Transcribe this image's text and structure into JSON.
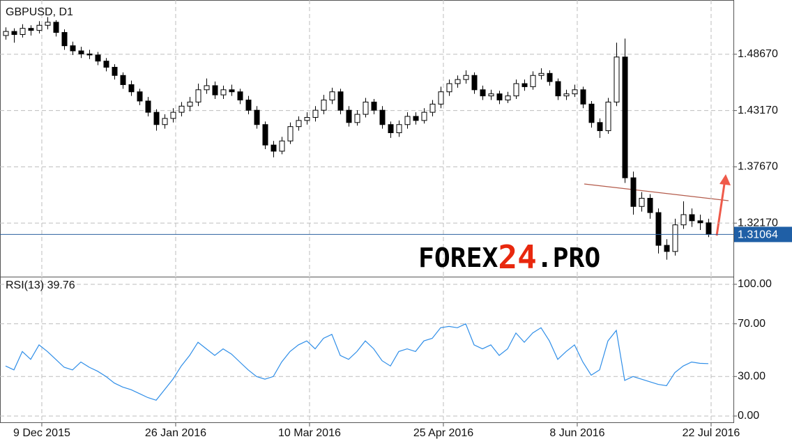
{
  "chart_data": [
    {
      "type": "candlestick",
      "title": "GBPUSD, D1",
      "candles": [
        [
          1.505,
          1.513,
          1.501,
          1.509
        ],
        [
          1.509,
          1.512,
          1.498,
          1.506
        ],
        [
          1.506,
          1.516,
          1.503,
          1.512
        ],
        [
          1.512,
          1.515,
          1.505,
          1.51
        ],
        [
          1.51,
          1.519,
          1.507,
          1.515
        ],
        [
          1.515,
          1.523,
          1.511,
          1.518
        ],
        [
          1.518,
          1.52,
          1.504,
          1.508
        ],
        [
          1.508,
          1.511,
          1.491,
          1.495
        ],
        [
          1.495,
          1.499,
          1.486,
          1.49
        ],
        [
          1.49,
          1.494,
          1.483,
          1.487
        ],
        [
          1.487,
          1.491,
          1.482,
          1.486
        ],
        [
          1.486,
          1.489,
          1.476,
          1.48
        ],
        [
          1.48,
          1.483,
          1.47,
          1.474
        ],
        [
          1.474,
          1.477,
          1.462,
          1.466
        ],
        [
          1.466,
          1.469,
          1.453,
          1.457
        ],
        [
          1.457,
          1.461,
          1.446,
          1.45
        ],
        [
          1.45,
          1.453,
          1.437,
          1.441
        ],
        [
          1.441,
          1.445,
          1.426,
          1.43
        ],
        [
          1.43,
          1.433,
          1.412,
          1.418
        ],
        [
          1.418,
          1.428,
          1.414,
          1.424
        ],
        [
          1.424,
          1.434,
          1.42,
          1.43
        ],
        [
          1.43,
          1.44,
          1.426,
          1.436
        ],
        [
          1.436,
          1.445,
          1.431,
          1.44
        ],
        [
          1.44,
          1.458,
          1.436,
          1.452
        ],
        [
          1.452,
          1.463,
          1.448,
          1.456
        ],
        [
          1.456,
          1.46,
          1.443,
          1.447
        ],
        [
          1.447,
          1.456,
          1.443,
          1.452
        ],
        [
          1.452,
          1.457,
          1.446,
          1.45
        ],
        [
          1.45,
          1.453,
          1.438,
          1.442
        ],
        [
          1.442,
          1.446,
          1.428,
          1.432
        ],
        [
          1.432,
          1.436,
          1.414,
          1.418
        ],
        [
          1.418,
          1.421,
          1.394,
          1.398
        ],
        [
          1.398,
          1.402,
          1.386,
          1.392
        ],
        [
          1.392,
          1.406,
          1.389,
          1.402
        ],
        [
          1.402,
          1.42,
          1.399,
          1.416
        ],
        [
          1.416,
          1.426,
          1.412,
          1.422
        ],
        [
          1.422,
          1.43,
          1.418,
          1.425
        ],
        [
          1.425,
          1.436,
          1.421,
          1.432
        ],
        [
          1.432,
          1.447,
          1.428,
          1.442
        ],
        [
          1.442,
          1.454,
          1.438,
          1.45
        ],
        [
          1.45,
          1.453,
          1.428,
          1.432
        ],
        [
          1.432,
          1.436,
          1.416,
          1.42
        ],
        [
          1.42,
          1.432,
          1.417,
          1.428
        ],
        [
          1.428,
          1.444,
          1.425,
          1.44
        ],
        [
          1.44,
          1.443,
          1.428,
          1.432
        ],
        [
          1.432,
          1.436,
          1.414,
          1.418
        ],
        [
          1.418,
          1.421,
          1.405,
          1.41
        ],
        [
          1.41,
          1.422,
          1.406,
          1.418
        ],
        [
          1.418,
          1.43,
          1.414,
          1.426
        ],
        [
          1.426,
          1.43,
          1.418,
          1.422
        ],
        [
          1.422,
          1.434,
          1.419,
          1.43
        ],
        [
          1.43,
          1.442,
          1.426,
          1.438
        ],
        [
          1.438,
          1.455,
          1.434,
          1.45
        ],
        [
          1.45,
          1.462,
          1.446,
          1.458
        ],
        [
          1.458,
          1.466,
          1.454,
          1.462
        ],
        [
          1.462,
          1.471,
          1.458,
          1.466
        ],
        [
          1.466,
          1.469,
          1.448,
          1.452
        ],
        [
          1.452,
          1.456,
          1.442,
          1.446
        ],
        [
          1.446,
          1.452,
          1.442,
          1.448
        ],
        [
          1.448,
          1.451,
          1.438,
          1.442
        ],
        [
          1.442,
          1.45,
          1.439,
          1.446
        ],
        [
          1.446,
          1.462,
          1.443,
          1.458
        ],
        [
          1.458,
          1.462,
          1.451,
          1.455
        ],
        [
          1.455,
          1.47,
          1.452,
          1.466
        ],
        [
          1.466,
          1.473,
          1.462,
          1.468
        ],
        [
          1.468,
          1.471,
          1.456,
          1.46
        ],
        [
          1.46,
          1.463,
          1.442,
          1.446
        ],
        [
          1.446,
          1.452,
          1.442,
          1.448
        ],
        [
          1.448,
          1.457,
          1.445,
          1.452
        ],
        [
          1.452,
          1.455,
          1.434,
          1.438
        ],
        [
          1.438,
          1.441,
          1.415,
          1.42
        ],
        [
          1.42,
          1.424,
          1.405,
          1.412
        ],
        [
          1.412,
          1.444,
          1.409,
          1.44
        ],
        [
          1.44,
          1.498,
          1.436,
          1.484
        ],
        [
          1.484,
          1.502,
          1.361,
          1.366
        ],
        [
          1.366,
          1.372,
          1.33,
          1.338
        ],
        [
          1.338,
          1.352,
          1.333,
          1.346
        ],
        [
          1.346,
          1.35,
          1.326,
          1.332
        ],
        [
          1.332,
          1.336,
          1.292,
          1.3
        ],
        [
          1.3,
          1.306,
          1.286,
          1.294
        ],
        [
          1.294,
          1.326,
          1.29,
          1.32
        ],
        [
          1.32,
          1.343,
          1.316,
          1.33
        ],
        [
          1.33,
          1.336,
          1.318,
          1.324
        ],
        [
          1.324,
          1.33,
          1.315,
          1.322
        ],
        [
          1.322,
          1.326,
          1.308,
          1.31064
        ]
      ],
      "ylim": [
        1.2694,
        1.5397
      ],
      "yticks": [
        {
          "value": 1.3217,
          "label": "1.32170"
        },
        {
          "value": 1.3767,
          "label": "1.37670"
        },
        {
          "value": 1.4317,
          "label": "1.43170"
        },
        {
          "value": 1.4867,
          "label": "1.48670"
        }
      ],
      "xlim": [
        -0.667,
        87.0
      ],
      "xticks": [
        {
          "value": 4.33,
          "label": "9 Dec 2015"
        },
        {
          "value": 20.33,
          "label": "26 Jan 2016"
        },
        {
          "value": 36.33,
          "label": "10 Mar 2016"
        },
        {
          "value": 52.33,
          "label": "25 Apr 2016"
        },
        {
          "value": 68.33,
          "label": "8 Jun 2016"
        },
        {
          "value": 84.33,
          "label": "22 Jul 2016"
        }
      ],
      "last_price": 1.31064,
      "grid": true
    },
    {
      "type": "line",
      "title": "RSI(13) 39.76",
      "color": "#2f8ee8",
      "values": [
        38,
        35,
        49,
        43,
        54,
        49,
        43,
        37,
        35,
        41,
        37,
        34,
        30,
        25,
        22,
        20,
        17,
        14,
        12,
        20,
        28,
        38,
        46,
        56,
        51,
        46,
        51,
        47,
        41,
        35,
        30,
        28,
        30,
        41,
        49,
        54,
        57,
        51,
        59,
        62,
        46,
        43,
        49,
        57,
        51,
        42,
        38,
        49,
        51,
        49,
        57,
        59,
        67,
        68,
        67,
        70,
        54,
        51,
        54,
        46,
        51,
        63,
        56,
        63,
        67,
        57,
        43,
        49,
        54,
        41,
        31,
        35,
        57,
        65,
        27,
        30,
        28,
        26,
        24,
        23,
        33,
        38,
        41,
        40,
        39.76
      ],
      "ylim": [
        -5.3,
        105.8
      ],
      "yticks": [
        {
          "value": 0,
          "label": "0.00"
        },
        {
          "value": 30,
          "label": "30.00"
        },
        {
          "value": 70,
          "label": "70.00"
        },
        {
          "value": 100,
          "label": "100.00"
        }
      ],
      "xlim": [
        -0.667,
        87.0
      ],
      "grid": true
    }
  ],
  "watermark": {
    "parts": [
      "FOREX",
      "24",
      ".PRO"
    ]
  }
}
